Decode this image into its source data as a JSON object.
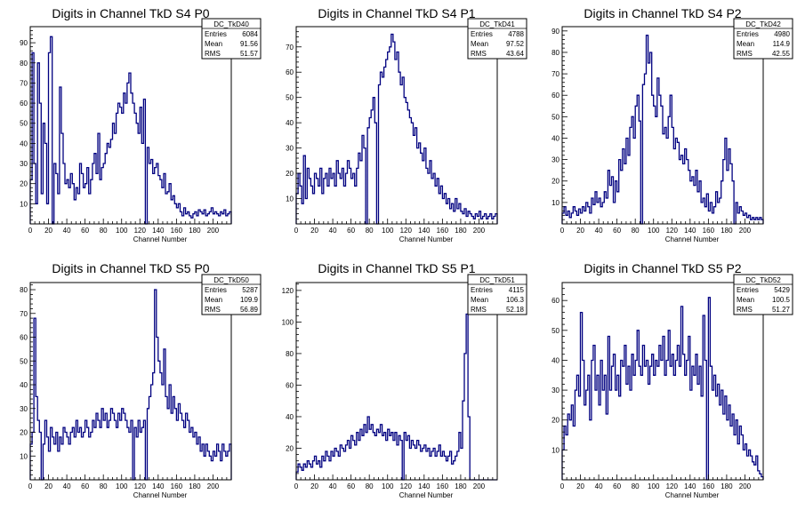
{
  "chart_data": [
    {
      "type": "histogram",
      "title": "Digits in Channel TkD S4 P0",
      "xlabel": "Channel Number",
      "xlim": [
        0,
        220
      ],
      "ylim": [
        0,
        98
      ],
      "xticks": [
        0,
        20,
        40,
        60,
        80,
        100,
        120,
        140,
        160,
        180,
        200
      ],
      "yticks": [
        10,
        20,
        30,
        40,
        50,
        60,
        70,
        80,
        90
      ],
      "stats": {
        "name": "DC_TkD40",
        "entries_label": "Entries",
        "entries": "6084",
        "mean_label": "Mean",
        "mean": "91.56",
        "rms_label": "RMS",
        "rms": "51.57"
      },
      "bin_width": 2,
      "values": [
        22,
        85,
        30,
        10,
        80,
        60,
        15,
        50,
        40,
        10,
        85,
        93,
        0,
        30,
        25,
        15,
        68,
        45,
        30,
        20,
        22,
        18,
        25,
        20,
        12,
        18,
        15,
        30,
        25,
        18,
        20,
        28,
        15,
        22,
        30,
        35,
        25,
        45,
        22,
        28,
        30,
        35,
        40,
        38,
        42,
        50,
        45,
        55,
        60,
        58,
        55,
        65,
        60,
        70,
        75,
        65,
        60,
        55,
        50,
        45,
        58,
        40,
        62,
        0,
        38,
        30,
        32,
        25,
        28,
        30,
        24,
        22,
        18,
        25,
        15,
        16,
        20,
        12,
        14,
        10,
        8,
        10,
        6,
        4,
        8,
        5,
        6,
        4,
        3,
        5,
        6,
        4,
        7,
        6,
        5,
        7,
        4,
        5,
        6,
        8,
        5,
        6,
        5,
        4,
        6,
        5,
        7,
        4,
        5,
        6
      ]
    },
    {
      "type": "histogram",
      "title": "Digits in Channel TkD S4 P1",
      "xlabel": "Channel Number",
      "xlim": [
        0,
        220
      ],
      "ylim": [
        0,
        78
      ],
      "xticks": [
        0,
        20,
        40,
        60,
        80,
        100,
        120,
        140,
        160,
        180,
        200
      ],
      "yticks": [
        10,
        20,
        30,
        40,
        50,
        60,
        70
      ],
      "stats": {
        "name": "DC_TkD41",
        "entries_label": "Entries",
        "entries": "4788",
        "mean_label": "Mean",
        "mean": "97.52",
        "rms_label": "RMS",
        "rms": "43.64"
      },
      "bin_width": 2,
      "values": [
        12,
        20,
        15,
        8,
        27,
        10,
        22,
        18,
        15,
        12,
        20,
        18,
        15,
        22,
        12,
        18,
        20,
        15,
        22,
        18,
        20,
        15,
        25,
        20,
        18,
        22,
        15,
        20,
        25,
        22,
        18,
        20,
        15,
        22,
        28,
        25,
        35,
        30,
        0,
        38,
        42,
        45,
        50,
        40,
        0,
        55,
        60,
        58,
        62,
        65,
        68,
        70,
        75,
        72,
        65,
        68,
        60,
        55,
        58,
        50,
        48,
        45,
        42,
        40,
        35,
        38,
        30,
        32,
        28,
        25,
        30,
        22,
        20,
        25,
        18,
        20,
        15,
        18,
        12,
        15,
        10,
        12,
        8,
        10,
        6,
        8,
        5,
        10,
        6,
        8,
        5,
        4,
        6,
        3,
        5,
        4,
        3,
        2,
        4,
        3,
        5,
        2,
        3,
        4,
        2,
        3,
        4,
        2,
        3,
        4
      ]
    },
    {
      "type": "histogram",
      "title": "Digits in Channel TkD S4 P2",
      "xlabel": "Channel Number",
      "xlim": [
        0,
        220
      ],
      "ylim": [
        0,
        92
      ],
      "xticks": [
        0,
        20,
        40,
        60,
        80,
        100,
        120,
        140,
        160,
        180,
        200
      ],
      "yticks": [
        10,
        20,
        30,
        40,
        50,
        60,
        70,
        80,
        90
      ],
      "stats": {
        "name": "DC_TkD42",
        "entries_label": "Entries",
        "entries": "4980",
        "mean_label": "Mean",
        "mean": "114.9",
        "rms_label": "RMS",
        "rms": "42.55"
      },
      "bin_width": 2,
      "values": [
        5,
        8,
        4,
        6,
        3,
        5,
        8,
        6,
        4,
        7,
        5,
        8,
        6,
        10,
        8,
        5,
        12,
        9,
        15,
        10,
        12,
        8,
        10,
        15,
        12,
        25,
        18,
        22,
        10,
        20,
        15,
        30,
        25,
        35,
        28,
        40,
        32,
        45,
        50,
        40,
        55,
        60,
        48,
        0,
        65,
        70,
        88,
        75,
        80,
        60,
        55,
        50,
        68,
        60,
        55,
        42,
        45,
        40,
        50,
        60,
        45,
        35,
        40,
        38,
        30,
        32,
        28,
        35,
        30,
        25,
        20,
        22,
        18,
        25,
        15,
        20,
        10,
        12,
        8,
        14,
        6,
        10,
        5,
        8,
        15,
        10,
        12,
        20,
        30,
        40,
        25,
        35,
        28,
        20,
        0,
        10,
        5,
        8,
        6,
        4,
        5,
        3,
        4,
        2,
        3,
        2,
        3,
        2,
        3,
        2
      ]
    },
    {
      "type": "histogram",
      "title": "Digits in Channel TkD S5 P0",
      "xlabel": "Channel Number",
      "xlim": [
        0,
        220
      ],
      "ylim": [
        0,
        83
      ],
      "xticks": [
        0,
        20,
        40,
        60,
        80,
        100,
        120,
        140,
        160,
        180,
        200
      ],
      "yticks": [
        10,
        20,
        30,
        40,
        50,
        60,
        70,
        80
      ],
      "stats": {
        "name": "DC_TkD50",
        "entries_label": "Entries",
        "entries": "5287",
        "mean_label": "Mean",
        "mean": "109.9",
        "rms_label": "RMS",
        "rms": "56.89"
      },
      "bin_width": 2,
      "values": [
        15,
        20,
        68,
        35,
        25,
        20,
        0,
        15,
        25,
        18,
        12,
        22,
        18,
        15,
        20,
        12,
        18,
        15,
        22,
        20,
        18,
        15,
        20,
        22,
        18,
        25,
        20,
        22,
        18,
        20,
        25,
        22,
        18,
        20,
        25,
        22,
        28,
        25,
        22,
        30,
        25,
        28,
        22,
        25,
        30,
        28,
        25,
        22,
        28,
        25,
        30,
        28,
        25,
        22,
        20,
        25,
        0,
        22,
        18,
        25,
        20,
        22,
        25,
        0,
        30,
        35,
        40,
        45,
        80,
        60,
        50,
        45,
        40,
        55,
        35,
        30,
        40,
        28,
        35,
        30,
        25,
        32,
        28,
        25,
        22,
        28,
        25,
        20,
        22,
        18,
        20,
        15,
        18,
        12,
        15,
        10,
        15,
        12,
        10,
        8,
        12,
        10,
        15,
        12,
        8,
        15,
        12,
        10,
        12,
        15
      ]
    },
    {
      "type": "histogram",
      "title": "Digits in Channel TkD S5 P1",
      "xlabel": "Channel Number",
      "xlim": [
        0,
        220
      ],
      "ylim": [
        0,
        125
      ],
      "xticks": [
        0,
        20,
        40,
        60,
        80,
        100,
        120,
        140,
        160,
        180,
        200
      ],
      "yticks": [
        20,
        40,
        60,
        80,
        100,
        120
      ],
      "stats": {
        "name": "DC_TkD51",
        "entries_label": "Entries",
        "entries": "4115",
        "mean_label": "Mean",
        "mean": "106.3",
        "rms_label": "RMS",
        "rms": "52.18"
      },
      "bin_width": 2,
      "values": [
        5,
        10,
        8,
        6,
        10,
        8,
        12,
        10,
        8,
        12,
        15,
        10,
        12,
        8,
        15,
        12,
        18,
        15,
        12,
        18,
        15,
        20,
        18,
        15,
        22,
        20,
        18,
        22,
        25,
        20,
        28,
        25,
        22,
        30,
        25,
        32,
        28,
        35,
        30,
        40,
        32,
        35,
        30,
        28,
        32,
        30,
        35,
        28,
        30,
        25,
        32,
        28,
        30,
        25,
        30,
        22,
        28,
        25,
        0,
        30,
        25,
        28,
        20,
        25,
        22,
        20,
        25,
        22,
        18,
        20,
        22,
        18,
        20,
        15,
        18,
        20,
        15,
        18,
        22,
        15,
        18,
        15,
        12,
        15,
        18,
        10,
        12,
        15,
        18,
        30,
        20,
        50,
        80,
        105,
        40,
        0,
        0,
        0,
        0,
        0,
        0,
        0,
        0,
        0,
        0,
        0,
        0,
        0,
        0,
        0
      ]
    },
    {
      "type": "histogram",
      "title": "Digits in Channel TkD S5 P2",
      "xlabel": "Channel Number",
      "xlim": [
        0,
        220
      ],
      "ylim": [
        0,
        66
      ],
      "xticks": [
        0,
        20,
        40,
        60,
        80,
        100,
        120,
        140,
        160,
        180,
        200
      ],
      "yticks": [
        10,
        20,
        30,
        40,
        50,
        60
      ],
      "stats": {
        "name": "DC_TkD52",
        "entries_label": "Entries",
        "entries": "5429",
        "mean_label": "Mean",
        "mean": "100.5",
        "rms_label": "RMS",
        "rms": "51.27"
      },
      "bin_width": 2,
      "values": [
        10,
        18,
        15,
        22,
        20,
        25,
        18,
        30,
        35,
        28,
        56,
        40,
        25,
        30,
        35,
        20,
        40,
        45,
        30,
        35,
        25,
        40,
        30,
        35,
        22,
        48,
        30,
        38,
        42,
        30,
        35,
        28,
        40,
        38,
        45,
        32,
        38,
        30,
        42,
        35,
        40,
        50,
        38,
        35,
        45,
        38,
        40,
        32,
        38,
        42,
        35,
        40,
        38,
        45,
        40,
        48,
        35,
        40,
        50,
        38,
        42,
        35,
        40,
        45,
        38,
        58,
        42,
        35,
        40,
        48,
        30,
        38,
        35,
        42,
        32,
        38,
        28,
        55,
        40,
        0,
        61,
        38,
        30,
        35,
        28,
        32,
        25,
        30,
        22,
        28,
        20,
        25,
        18,
        22,
        15,
        20,
        12,
        18,
        15,
        10,
        12,
        8,
        10,
        8,
        6,
        5,
        8,
        3,
        2,
        1
      ]
    }
  ]
}
